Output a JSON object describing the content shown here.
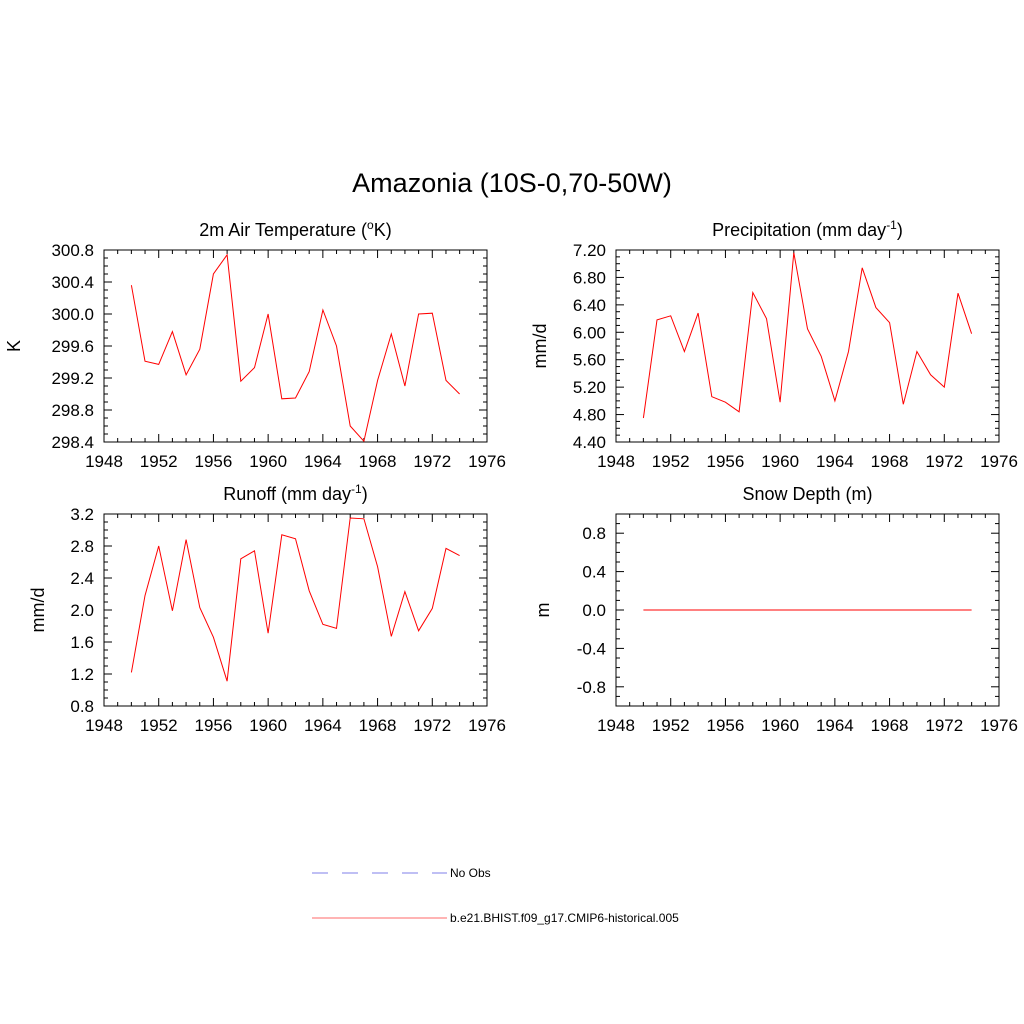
{
  "figure": {
    "title": "Amazonia (10S-0,70-50W)"
  },
  "chart_data": [
    {
      "type": "line",
      "title": "2m Air Temperature (",
      "title_sup": "o",
      "title_post": "K)",
      "ylabel": "K",
      "xlim": [
        1948,
        1976
      ],
      "ylim": [
        298.4,
        300.8
      ],
      "yticks": [
        "298.4",
        "298.8",
        "299.2",
        "299.6",
        "300.0",
        "300.4",
        "300.8"
      ],
      "xticks": [
        "1948",
        "1952",
        "1956",
        "1960",
        "1964",
        "1968",
        "1972",
        "1976"
      ],
      "series": [
        {
          "color": "#ff0000",
          "x": [
            1950,
            1951,
            1952,
            1953,
            1954,
            1955,
            1956,
            1957,
            1958,
            1959,
            1960,
            1961,
            1962,
            1963,
            1964,
            1965,
            1966,
            1967,
            1968,
            1969,
            1970,
            1971,
            1972,
            1973,
            1974
          ],
          "y": [
            300.36,
            299.41,
            299.37,
            299.78,
            299.24,
            299.56,
            300.5,
            300.74,
            299.16,
            299.33,
            300.0,
            298.94,
            298.95,
            299.28,
            300.05,
            299.6,
            298.6,
            298.41,
            299.17,
            299.75,
            299.1,
            300.0,
            300.01,
            299.17,
            299.0
          ]
        }
      ]
    },
    {
      "type": "line",
      "title": "Precipitation (mm day",
      "title_sup": "-1",
      "title_post": ")",
      "ylabel": "mm/d",
      "xlim": [
        1948,
        1976
      ],
      "ylim": [
        4.4,
        7.2
      ],
      "yticks": [
        "4.40",
        "4.80",
        "5.20",
        "5.60",
        "6.00",
        "6.40",
        "6.80",
        "7.20"
      ],
      "xticks": [
        "1948",
        "1952",
        "1956",
        "1960",
        "1964",
        "1968",
        "1972",
        "1976"
      ],
      "series": [
        {
          "color": "#ff0000",
          "x": [
            1950,
            1951,
            1952,
            1953,
            1954,
            1955,
            1956,
            1957,
            1958,
            1959,
            1960,
            1961,
            1962,
            1963,
            1964,
            1965,
            1966,
            1967,
            1968,
            1969,
            1970,
            1971,
            1972,
            1973,
            1974
          ],
          "y": [
            4.75,
            6.18,
            6.24,
            5.72,
            6.28,
            5.06,
            4.98,
            4.84,
            6.58,
            6.2,
            4.98,
            7.16,
            6.05,
            5.65,
            5.0,
            5.72,
            6.94,
            6.36,
            6.14,
            4.95,
            5.72,
            5.38,
            5.2,
            6.57,
            5.98
          ]
        }
      ]
    },
    {
      "type": "line",
      "title": "Runoff (mm day",
      "title_sup": "-1",
      "title_post": ")",
      "ylabel": "mm/d",
      "xlim": [
        1948,
        1976
      ],
      "ylim": [
        0.8,
        3.2
      ],
      "yticks": [
        "0.8",
        "1.2",
        "1.6",
        "2.0",
        "2.4",
        "2.8",
        "3.2"
      ],
      "xticks": [
        "1948",
        "1952",
        "1956",
        "1960",
        "1964",
        "1968",
        "1972",
        "1976"
      ],
      "series": [
        {
          "color": "#ff0000",
          "x": [
            1950,
            1951,
            1952,
            1953,
            1954,
            1955,
            1956,
            1957,
            1958,
            1959,
            1960,
            1961,
            1962,
            1963,
            1964,
            1965,
            1966,
            1967,
            1968,
            1969,
            1970,
            1971,
            1972,
            1973,
            1974
          ],
          "y": [
            1.22,
            2.18,
            2.8,
            1.99,
            2.88,
            2.03,
            1.66,
            1.11,
            2.64,
            2.74,
            1.71,
            2.94,
            2.89,
            2.24,
            1.82,
            1.77,
            3.15,
            3.14,
            2.54,
            1.67,
            2.23,
            1.74,
            2.02,
            2.77,
            2.68
          ]
        }
      ]
    },
    {
      "type": "line",
      "title": "Snow Depth (m)",
      "title_sup": "",
      "title_post": "",
      "ylabel": "m",
      "xlim": [
        1948,
        1976
      ],
      "ylim": [
        -1.0,
        1.0
      ],
      "yticks": [
        "-0.8",
        "-0.4",
        "0.0",
        "0.4",
        "0.8"
      ],
      "ytick_values": [
        -0.8,
        -0.4,
        0.0,
        0.4,
        0.8
      ],
      "xticks": [
        "1948",
        "1952",
        "1956",
        "1960",
        "1964",
        "1968",
        "1972",
        "1976"
      ],
      "series": [
        {
          "color": "#ff0000",
          "x": [
            1950,
            1974
          ],
          "y": [
            0.0,
            0.0
          ]
        }
      ]
    }
  ],
  "legend": {
    "items": [
      {
        "label": "No Obs",
        "color": "#9999ee",
        "style": "dashed"
      },
      {
        "label": "b.e21.BHIST.f09_g17.CMIP6-historical.005",
        "color": "#ff8888",
        "style": "solid"
      }
    ]
  }
}
